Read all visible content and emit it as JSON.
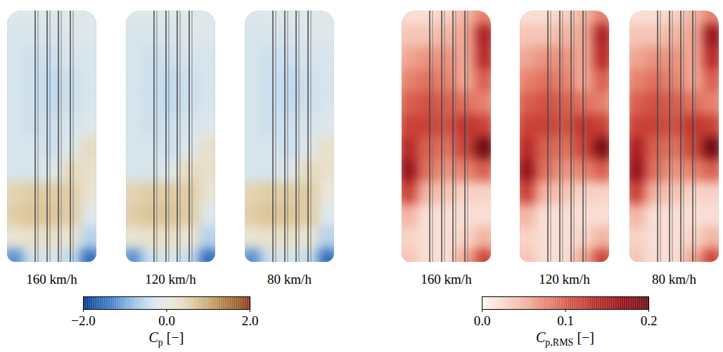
{
  "chart_data": [
    {
      "type": "heatmap",
      "tick_labels": false,
      "panels": [
        {
          "label": "160 km/h",
          "values": [
            [
              -0.2,
              -0.2,
              -0.2,
              -0.2,
              -0.2
            ],
            [
              -0.3,
              -0.3,
              -0.3,
              -0.2,
              -0.2
            ],
            [
              -0.3,
              -0.4,
              -0.4,
              -0.3,
              -0.3
            ],
            [
              -0.3,
              -0.4,
              -0.5,
              -0.4,
              -0.3
            ],
            [
              -0.3,
              -0.4,
              -0.5,
              -0.4,
              -0.3
            ],
            [
              -0.3,
              -0.4,
              -0.4,
              -0.3,
              -0.2
            ],
            [
              -0.3,
              -0.3,
              -0.4,
              -0.2,
              0.4
            ],
            [
              -0.3,
              -0.3,
              -0.2,
              0.4,
              0.3
            ],
            [
              0.5,
              0.6,
              0.6,
              0.6,
              0.2
            ],
            [
              0.6,
              0.7,
              0.7,
              0.6,
              -0.2
            ],
            [
              0.2,
              0.3,
              0.3,
              0.2,
              -0.6
            ],
            [
              -1.2,
              -0.4,
              -0.3,
              -0.5,
              -1.5
            ]
          ]
        },
        {
          "label": "120 km/h",
          "values": [
            [
              -0.2,
              -0.2,
              -0.2,
              -0.2,
              -0.2
            ],
            [
              -0.3,
              -0.3,
              -0.3,
              -0.2,
              -0.2
            ],
            [
              -0.3,
              -0.4,
              -0.4,
              -0.3,
              -0.3
            ],
            [
              -0.3,
              -0.4,
              -0.5,
              -0.4,
              -0.3
            ],
            [
              -0.3,
              -0.4,
              -0.5,
              -0.4,
              -0.3
            ],
            [
              -0.3,
              -0.4,
              -0.4,
              -0.3,
              -0.2
            ],
            [
              -0.3,
              -0.3,
              -0.4,
              -0.2,
              0.3
            ],
            [
              -0.3,
              -0.3,
              -0.2,
              0.4,
              0.3
            ],
            [
              0.5,
              0.6,
              0.6,
              0.6,
              0.2
            ],
            [
              0.6,
              0.7,
              0.7,
              0.6,
              -0.2
            ],
            [
              0.2,
              0.3,
              0.3,
              0.2,
              -0.6
            ],
            [
              -1.2,
              -0.4,
              -0.3,
              -0.5,
              -1.5
            ]
          ]
        },
        {
          "label": "80 km/h",
          "values": [
            [
              -0.2,
              -0.2,
              -0.2,
              -0.2,
              -0.2
            ],
            [
              -0.3,
              -0.3,
              -0.3,
              -0.2,
              -0.2
            ],
            [
              -0.3,
              -0.4,
              -0.4,
              -0.3,
              -0.3
            ],
            [
              -0.3,
              -0.4,
              -0.5,
              -0.4,
              -0.3
            ],
            [
              -0.3,
              -0.4,
              -0.5,
              -0.4,
              -0.3
            ],
            [
              -0.3,
              -0.4,
              -0.4,
              -0.3,
              -0.2
            ],
            [
              -0.3,
              -0.3,
              -0.4,
              -0.2,
              0.3
            ],
            [
              -0.3,
              -0.3,
              -0.2,
              0.4,
              0.3
            ],
            [
              0.5,
              0.6,
              0.6,
              0.6,
              0.1
            ],
            [
              0.6,
              0.7,
              0.7,
              0.6,
              -0.2
            ],
            [
              0.2,
              0.3,
              0.3,
              0.2,
              -0.6
            ],
            [
              -1.2,
              -0.4,
              -0.3,
              -0.5,
              -1.5
            ]
          ]
        }
      ],
      "colorbar": {
        "label": {
          "base": "C",
          "sub": "p",
          "unit": "[−]"
        },
        "range": [
          -2,
          2
        ],
        "ticks": [
          {
            "value": -2,
            "label": "−2.0"
          },
          {
            "value": 0,
            "label": "0.0"
          },
          {
            "value": 2,
            "label": "2.0"
          }
        ],
        "colors": [
          "#0b3a8f",
          "#2f6fc4",
          "#8fbde6",
          "#e4eef4",
          "#efe6d2",
          "#d4b880",
          "#b07a3c",
          "#8a3a1c"
        ]
      }
    },
    {
      "type": "heatmap",
      "tick_labels": false,
      "panels": [
        {
          "label": "160 km/h",
          "values": [
            [
              0.02,
              0.02,
              0.03,
              0.05,
              0.08
            ],
            [
              0.04,
              0.04,
              0.05,
              0.06,
              0.15
            ],
            [
              0.06,
              0.07,
              0.07,
              0.06,
              0.14
            ],
            [
              0.08,
              0.09,
              0.08,
              0.06,
              0.1
            ],
            [
              0.1,
              0.11,
              0.1,
              0.09,
              0.08
            ],
            [
              0.12,
              0.12,
              0.11,
              0.13,
              0.12
            ],
            [
              0.14,
              0.1,
              0.09,
              0.12,
              0.2
            ],
            [
              0.17,
              0.09,
              0.07,
              0.08,
              0.1
            ],
            [
              0.12,
              0.05,
              0.04,
              0.03,
              0.03
            ],
            [
              0.05,
              0.02,
              0.02,
              0.02,
              0.02
            ],
            [
              0.03,
              0.02,
              0.02,
              0.03,
              0.05
            ],
            [
              0.04,
              0.02,
              0.02,
              0.06,
              0.12
            ]
          ]
        },
        {
          "label": "120 km/h",
          "values": [
            [
              0.02,
              0.02,
              0.03,
              0.05,
              0.08
            ],
            [
              0.04,
              0.04,
              0.05,
              0.06,
              0.15
            ],
            [
              0.06,
              0.07,
              0.07,
              0.06,
              0.14
            ],
            [
              0.08,
              0.09,
              0.08,
              0.06,
              0.1
            ],
            [
              0.1,
              0.11,
              0.1,
              0.09,
              0.08
            ],
            [
              0.12,
              0.12,
              0.11,
              0.13,
              0.12
            ],
            [
              0.14,
              0.1,
              0.09,
              0.12,
              0.19
            ],
            [
              0.17,
              0.09,
              0.07,
              0.08,
              0.1
            ],
            [
              0.12,
              0.05,
              0.04,
              0.03,
              0.03
            ],
            [
              0.05,
              0.02,
              0.02,
              0.02,
              0.02
            ],
            [
              0.03,
              0.02,
              0.02,
              0.03,
              0.05
            ],
            [
              0.04,
              0.02,
              0.02,
              0.06,
              0.12
            ]
          ]
        },
        {
          "label": "80 km/h",
          "values": [
            [
              0.02,
              0.02,
              0.03,
              0.05,
              0.08
            ],
            [
              0.04,
              0.04,
              0.05,
              0.06,
              0.17
            ],
            [
              0.06,
              0.07,
              0.07,
              0.06,
              0.14
            ],
            [
              0.08,
              0.09,
              0.08,
              0.06,
              0.1
            ],
            [
              0.1,
              0.11,
              0.1,
              0.09,
              0.08
            ],
            [
              0.12,
              0.12,
              0.11,
              0.13,
              0.12
            ],
            [
              0.15,
              0.1,
              0.09,
              0.12,
              0.2
            ],
            [
              0.17,
              0.09,
              0.07,
              0.08,
              0.1
            ],
            [
              0.12,
              0.05,
              0.04,
              0.03,
              0.03
            ],
            [
              0.05,
              0.02,
              0.02,
              0.02,
              0.02
            ],
            [
              0.03,
              0.02,
              0.02,
              0.03,
              0.05
            ],
            [
              0.04,
              0.02,
              0.02,
              0.06,
              0.12
            ]
          ]
        }
      ],
      "colorbar": {
        "label": {
          "base": "C",
          "sub": "p,RMS",
          "unit": "[−]"
        },
        "range": [
          0,
          0.2
        ],
        "ticks": [
          {
            "value": 0,
            "label": "0.0"
          },
          0.1,
          0.2
        ],
        "colors": [
          "#fdf6f2",
          "#f6c8b8",
          "#e8806a",
          "#cc3d30",
          "#a3121c",
          "#6e0a10"
        ]
      }
    }
  ]
}
